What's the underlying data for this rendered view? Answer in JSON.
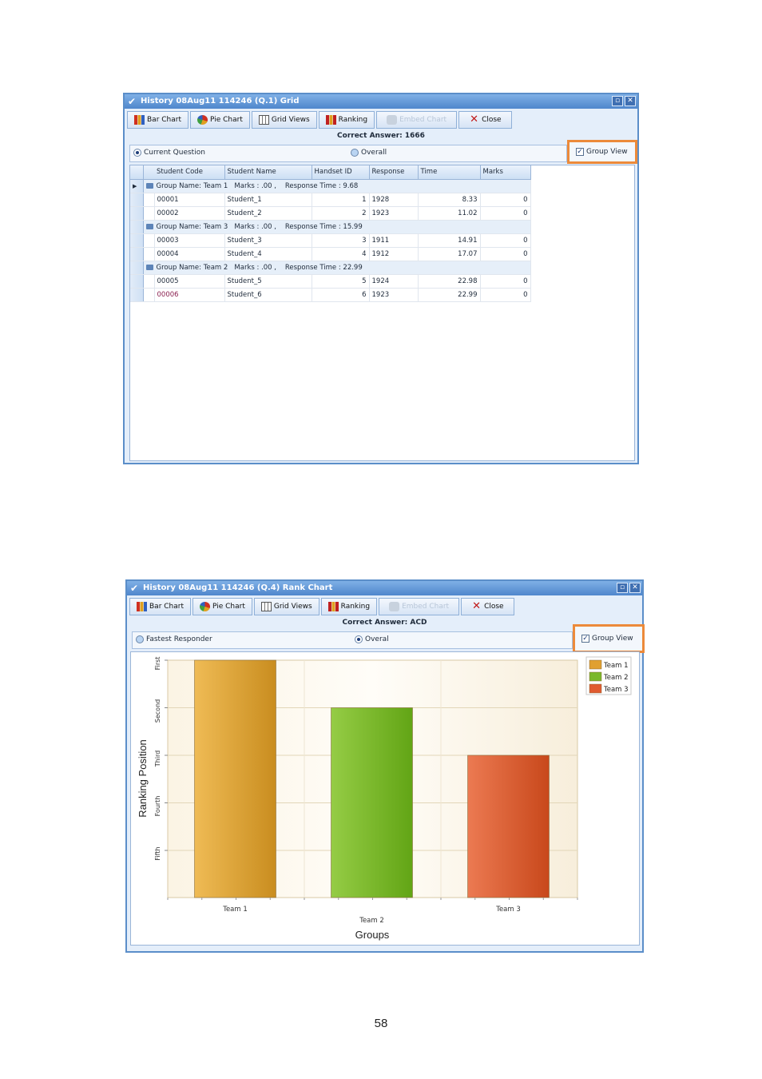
{
  "colors": {
    "titlebar": "#5b8ec9",
    "highlight": "#ec8a3a",
    "team1": "#e0a030",
    "team2": "#7ab82a",
    "team3": "#e05a30"
  },
  "window1": {
    "title": "History 08Aug11 114246 (Q.1) Grid",
    "toolbar": [
      "Bar Chart",
      "Pie Chart",
      "Grid Views",
      "Ranking",
      "Embed Chart",
      "Close"
    ],
    "correct_answer": "Correct Answer: 1666",
    "option_current": "Current Question",
    "option_overall": "Overall",
    "group_view": "Group View",
    "columns": [
      "Student Code",
      "Student Name",
      "Handset ID",
      "Response",
      "Time",
      "Marks"
    ],
    "groups": [
      {
        "name": "Group Name: Team 1",
        "marks": "Marks : .00 ,",
        "response_time": "Response Time : 9.68",
        "rows": [
          {
            "code": "00001",
            "name": "Student_1",
            "handset": "1",
            "response": "1928",
            "time": "8.33",
            "marks": "0"
          },
          {
            "code": "00002",
            "name": "Student_2",
            "handset": "2",
            "response": "1923",
            "time": "11.02",
            "marks": "0"
          }
        ]
      },
      {
        "name": "Group Name: Team 3",
        "marks": "Marks : .00 ,",
        "response_time": "Response Time : 15.99",
        "rows": [
          {
            "code": "00003",
            "name": "Student_3",
            "handset": "3",
            "response": "1911",
            "time": "14.91",
            "marks": "0"
          },
          {
            "code": "00004",
            "name": "Student_4",
            "handset": "4",
            "response": "1912",
            "time": "17.07",
            "marks": "0"
          }
        ]
      },
      {
        "name": "Group Name: Team 2",
        "marks": "Marks : .00 ,",
        "response_time": "Response Time : 22.99",
        "rows": [
          {
            "code": "00005",
            "name": "Student_5",
            "handset": "5",
            "response": "1924",
            "time": "22.98",
            "marks": "0"
          },
          {
            "code": "00006",
            "name": "Student_6",
            "handset": "6",
            "response": "1923",
            "time": "22.99",
            "marks": "0"
          }
        ]
      }
    ]
  },
  "window2": {
    "title": "History 08Aug11 114246 (Q.4) Rank Chart",
    "toolbar": [
      "Bar Chart",
      "Pie Chart",
      "Grid Views",
      "Ranking",
      "Embed Chart",
      "Close"
    ],
    "correct_answer": "Correct Answer: ACD",
    "option_fastest": "Fastest Responder",
    "option_overall": "Overal",
    "group_view": "Group View"
  },
  "chart_data": {
    "type": "bar",
    "categories": [
      "Team 1",
      "Team 2",
      "Team 3"
    ],
    "values": [
      1,
      2,
      3
    ],
    "y_tick_labels": [
      "First",
      "Second",
      "Third",
      "Fourth",
      "Fifth"
    ],
    "ylabel": "Ranking Position",
    "xlabel": "Groups",
    "legend": [
      "Team 1",
      "Team 2",
      "Team 3"
    ],
    "legend_position": "top-right",
    "grid": true
  },
  "page_number": "58"
}
